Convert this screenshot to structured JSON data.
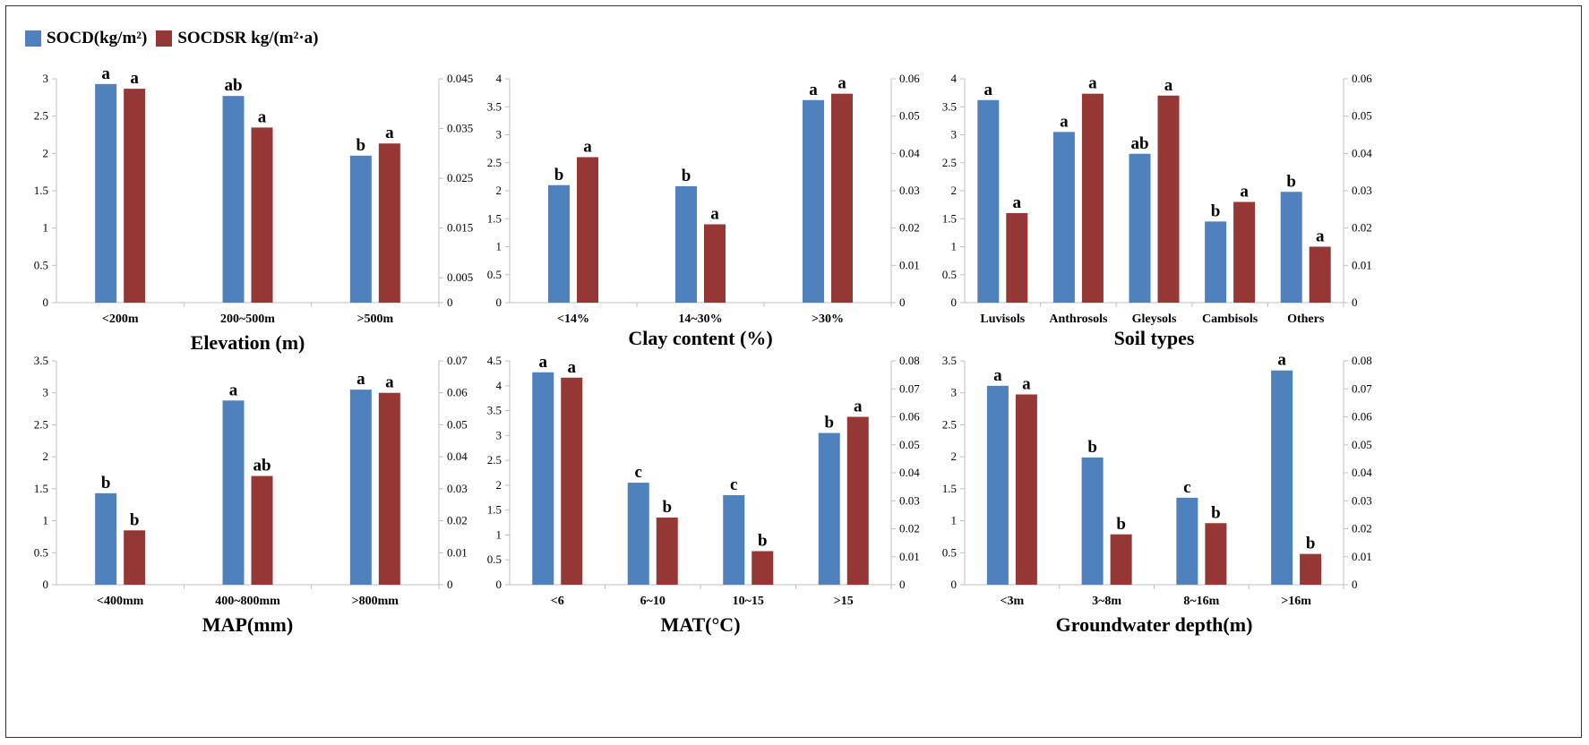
{
  "legend": {
    "series1_label": "SOCD(kg/m²)",
    "series2_label": "SOCDSR kg/(m²·a)"
  },
  "colors": {
    "series1": "#4f81bd",
    "series2": "#953735",
    "axis": "#bfbfbf",
    "text": "#000000"
  },
  "chart_data": [
    {
      "type": "bar",
      "xlabel": "Elevation (m)",
      "categories": [
        "<200m",
        "200~500m",
        ">500m"
      ],
      "left_axis": {
        "min": 0,
        "max": 3,
        "ticks": [
          "0",
          "0.5",
          "1",
          "1.5",
          "2",
          "2.5",
          "3"
        ]
      },
      "right_axis": {
        "min": 0,
        "max": 0.045,
        "ticks": [
          "0",
          "0.005",
          "0.015",
          "0.025",
          "0.035",
          "0.045"
        ],
        "tick_values": [
          0,
          0.005,
          0.015,
          0.025,
          0.035,
          0.045
        ]
      },
      "series": [
        {
          "name": "SOCD(kg/m²)",
          "axis": "left",
          "values": [
            2.93,
            2.77,
            1.97
          ],
          "labels": [
            "a",
            "ab",
            "b"
          ]
        },
        {
          "name": "SOCDSR kg/(m²·a)",
          "axis": "right",
          "values": [
            0.043,
            0.0352,
            0.032
          ],
          "labels": [
            "a",
            "a",
            "a"
          ]
        }
      ]
    },
    {
      "type": "bar",
      "xlabel": "Clay content (%)",
      "categories": [
        "<14%",
        "14~30%",
        ">30%"
      ],
      "left_axis": {
        "min": 0,
        "max": 4,
        "ticks": [
          "0",
          "0.5",
          "1",
          "1.5",
          "2",
          "2.5",
          "3",
          "3.5",
          "4"
        ]
      },
      "right_axis": {
        "min": 0,
        "max": 0.06,
        "ticks": [
          "0",
          "0.01",
          "0.02",
          "0.03",
          "0.04",
          "0.05",
          "0.06"
        ],
        "tick_values": [
          0,
          0.01,
          0.02,
          0.03,
          0.04,
          0.05,
          0.06
        ]
      },
      "series": [
        {
          "name": "SOCD(kg/m²)",
          "axis": "left",
          "values": [
            2.1,
            2.08,
            3.62
          ],
          "labels": [
            "b",
            "b",
            "a"
          ]
        },
        {
          "name": "SOCDSR kg/(m²·a)",
          "axis": "right",
          "values": [
            0.039,
            0.021,
            0.056
          ],
          "labels": [
            "a",
            "a",
            "a"
          ]
        }
      ]
    },
    {
      "type": "bar",
      "xlabel": "Soil types",
      "categories": [
        "Luvisols",
        "Anthrosols",
        "Gleysols",
        "Cambisols",
        "Others"
      ],
      "left_axis": {
        "min": 0,
        "max": 4,
        "ticks": [
          "0",
          "0.5",
          "1",
          "1.5",
          "2",
          "2.5",
          "3",
          "3.5",
          "4"
        ]
      },
      "right_axis": {
        "min": 0,
        "max": 0.06,
        "ticks": [
          "0",
          "0.01",
          "0.02",
          "0.03",
          "0.04",
          "0.05",
          "0.06"
        ],
        "tick_values": [
          0,
          0.01,
          0.02,
          0.03,
          0.04,
          0.05,
          0.06
        ]
      },
      "series": [
        {
          "name": "SOCD(kg/m²)",
          "axis": "left",
          "values": [
            3.62,
            3.05,
            2.66,
            1.45,
            1.98
          ],
          "labels": [
            "a",
            "a",
            "ab",
            "b",
            "b"
          ]
        },
        {
          "name": "SOCDSR kg/(m²·a)",
          "axis": "right",
          "values": [
            0.024,
            0.056,
            0.0555,
            0.027,
            0.015
          ],
          "labels": [
            "a",
            "a",
            "a",
            "a",
            "a"
          ]
        }
      ]
    },
    {
      "type": "bar",
      "xlabel": "MAP(mm)",
      "categories": [
        "<400mm",
        "400~800mm",
        ">800mm"
      ],
      "left_axis": {
        "min": 0,
        "max": 3.5,
        "ticks": [
          "0",
          "0.5",
          "1",
          "1.5",
          "2",
          "2.5",
          "3",
          "3.5"
        ]
      },
      "right_axis": {
        "min": 0,
        "max": 0.07,
        "ticks": [
          "0",
          "0.01",
          "0.02",
          "0.03",
          "0.04",
          "0.05",
          "0.06",
          "0.07"
        ],
        "tick_values": [
          0,
          0.01,
          0.02,
          0.03,
          0.04,
          0.05,
          0.06,
          0.07
        ]
      },
      "series": [
        {
          "name": "SOCD(kg/m²)",
          "axis": "left",
          "values": [
            1.43,
            2.88,
            3.05
          ],
          "labels": [
            "b",
            "a",
            "a"
          ]
        },
        {
          "name": "SOCDSR kg/(m²·a)",
          "axis": "right",
          "values": [
            0.017,
            0.034,
            0.06
          ],
          "labels": [
            "b",
            "ab",
            "a"
          ]
        }
      ]
    },
    {
      "type": "bar",
      "xlabel": "MAT(°C)",
      "categories": [
        "<6",
        "6~10",
        "10~15",
        ">15"
      ],
      "left_axis": {
        "min": 0,
        "max": 4.5,
        "ticks": [
          "0",
          "0.5",
          "1",
          "1.5",
          "2",
          "2.5",
          "3",
          "3.5",
          "4",
          "4.5"
        ]
      },
      "right_axis": {
        "min": 0,
        "max": 0.08,
        "ticks": [
          "0",
          "0.01",
          "0.02",
          "0.03",
          "0.04",
          "0.05",
          "0.06",
          "0.07",
          "0.08"
        ],
        "tick_values": [
          0,
          0.01,
          0.02,
          0.03,
          0.04,
          0.05,
          0.06,
          0.07,
          0.08
        ]
      },
      "series": [
        {
          "name": "SOCD(kg/m²)",
          "axis": "left",
          "values": [
            4.27,
            2.05,
            1.8,
            3.05
          ],
          "labels": [
            "a",
            "c",
            "c",
            "b"
          ]
        },
        {
          "name": "SOCDSR kg/(m²·a)",
          "axis": "right",
          "values": [
            0.074,
            0.024,
            0.012,
            0.06
          ],
          "labels": [
            "a",
            "b",
            "b",
            "a"
          ]
        }
      ]
    },
    {
      "type": "bar",
      "xlabel": "Groundwater depth(m)",
      "categories": [
        "<3m",
        "3~8m",
        "8~16m",
        ">16m"
      ],
      "left_axis": {
        "min": 0,
        "max": 3.5,
        "ticks": [
          "0",
          "0.5",
          "1",
          "1.5",
          "2",
          "2.5",
          "3",
          "3.5"
        ]
      },
      "right_axis": {
        "min": 0,
        "max": 0.08,
        "ticks": [
          "0",
          "0.01",
          "0.02",
          "0.03",
          "0.04",
          "0.05",
          "0.06",
          "0.07",
          "0.08"
        ],
        "tick_values": [
          0,
          0.01,
          0.02,
          0.03,
          0.04,
          0.05,
          0.06,
          0.07,
          0.08
        ]
      },
      "series": [
        {
          "name": "SOCD(kg/m²)",
          "axis": "left",
          "values": [
            3.11,
            1.99,
            1.36,
            3.35
          ],
          "labels": [
            "a",
            "b",
            "c",
            "a"
          ]
        },
        {
          "name": "SOCDSR kg/(m²·a)",
          "axis": "right",
          "values": [
            0.068,
            0.018,
            0.022,
            0.011
          ],
          "labels": [
            "a",
            "b",
            "b",
            "b"
          ]
        }
      ]
    }
  ]
}
